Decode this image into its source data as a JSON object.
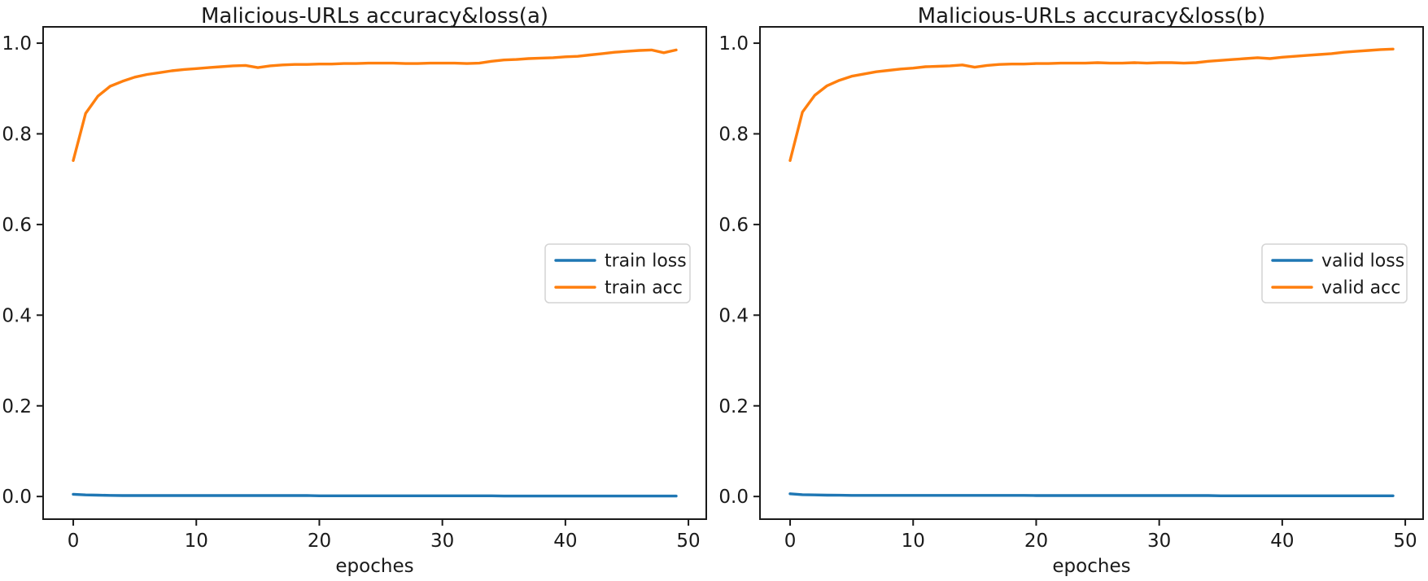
{
  "figure": {
    "background": "#ffffff",
    "text_color": "#1a1a1a",
    "axis_color": "#1a1a1a",
    "legend_border_color": "#d4d4d4"
  },
  "chart_data": [
    {
      "type": "line",
      "title": "Malicious-URLs accuracy&loss(a)",
      "xlabel": "epoches",
      "ylabel": "",
      "x_start": 0,
      "x_step": 1,
      "xlim": [
        -2.45,
        51.45
      ],
      "ylim": [
        -0.05,
        1.036
      ],
      "x_ticks": [
        0,
        10,
        20,
        30,
        40,
        50
      ],
      "y_ticks": [
        0.0,
        0.2,
        0.4,
        0.6,
        0.8,
        1.0
      ],
      "grid": false,
      "legend_position": "center-right",
      "series": [
        {
          "name": "train loss",
          "color": "#1f77b4",
          "values": [
            0.005,
            0.0035,
            0.003,
            0.0025,
            0.002,
            0.002,
            0.002,
            0.002,
            0.002,
            0.002,
            0.002,
            0.002,
            0.002,
            0.002,
            0.002,
            0.002,
            0.002,
            0.002,
            0.002,
            0.002,
            0.0015,
            0.0015,
            0.0015,
            0.0015,
            0.0015,
            0.0015,
            0.0015,
            0.0015,
            0.0015,
            0.0015,
            0.0015,
            0.0015,
            0.0015,
            0.0015,
            0.0015,
            0.001,
            0.001,
            0.001,
            0.001,
            0.001,
            0.001,
            0.001,
            0.001,
            0.001,
            0.001,
            0.001,
            0.001,
            0.001,
            0.001,
            0.001
          ]
        },
        {
          "name": "train acc",
          "color": "#ff7f0e",
          "values": [
            0.741,
            0.845,
            0.883,
            0.905,
            0.916,
            0.925,
            0.931,
            0.935,
            0.939,
            0.942,
            0.944,
            0.946,
            0.948,
            0.95,
            0.951,
            0.946,
            0.95,
            0.952,
            0.953,
            0.953,
            0.954,
            0.954,
            0.955,
            0.955,
            0.956,
            0.956,
            0.956,
            0.955,
            0.955,
            0.956,
            0.956,
            0.956,
            0.955,
            0.956,
            0.96,
            0.963,
            0.964,
            0.966,
            0.967,
            0.968,
            0.97,
            0.971,
            0.974,
            0.977,
            0.98,
            0.982,
            0.984,
            0.985,
            0.979,
            0.985
          ]
        }
      ]
    },
    {
      "type": "line",
      "title": "Malicious-URLs accuracy&loss(b)",
      "xlabel": "epoches",
      "ylabel": "",
      "x_start": 0,
      "x_step": 1,
      "xlim": [
        -2.45,
        51.45
      ],
      "ylim": [
        -0.05,
        1.036
      ],
      "x_ticks": [
        0,
        10,
        20,
        30,
        40,
        50
      ],
      "y_ticks": [
        0.0,
        0.2,
        0.4,
        0.6,
        0.8,
        1.0
      ],
      "grid": false,
      "legend_position": "center-right",
      "series": [
        {
          "name": "valid loss",
          "color": "#1f77b4",
          "values": [
            0.006,
            0.004,
            0.0035,
            0.003,
            0.0028,
            0.0025,
            0.0025,
            0.0025,
            0.0025,
            0.0025,
            0.0025,
            0.0025,
            0.0025,
            0.0025,
            0.0025,
            0.0025,
            0.0025,
            0.0025,
            0.0025,
            0.0025,
            0.002,
            0.002,
            0.002,
            0.002,
            0.002,
            0.002,
            0.002,
            0.002,
            0.002,
            0.002,
            0.002,
            0.002,
            0.002,
            0.002,
            0.002,
            0.0015,
            0.0015,
            0.0015,
            0.0015,
            0.0015,
            0.0015,
            0.0015,
            0.0015,
            0.0015,
            0.0015,
            0.0015,
            0.0015,
            0.0015,
            0.0015,
            0.0015
          ]
        },
        {
          "name": "valid acc",
          "color": "#ff7f0e",
          "values": [
            0.741,
            0.848,
            0.885,
            0.906,
            0.918,
            0.927,
            0.932,
            0.937,
            0.94,
            0.943,
            0.945,
            0.948,
            0.949,
            0.95,
            0.952,
            0.947,
            0.951,
            0.953,
            0.954,
            0.954,
            0.955,
            0.955,
            0.956,
            0.956,
            0.956,
            0.957,
            0.956,
            0.956,
            0.957,
            0.956,
            0.957,
            0.957,
            0.956,
            0.957,
            0.96,
            0.962,
            0.964,
            0.966,
            0.968,
            0.966,
            0.969,
            0.971,
            0.973,
            0.975,
            0.977,
            0.98,
            0.982,
            0.984,
            0.986,
            0.987
          ]
        }
      ]
    }
  ]
}
